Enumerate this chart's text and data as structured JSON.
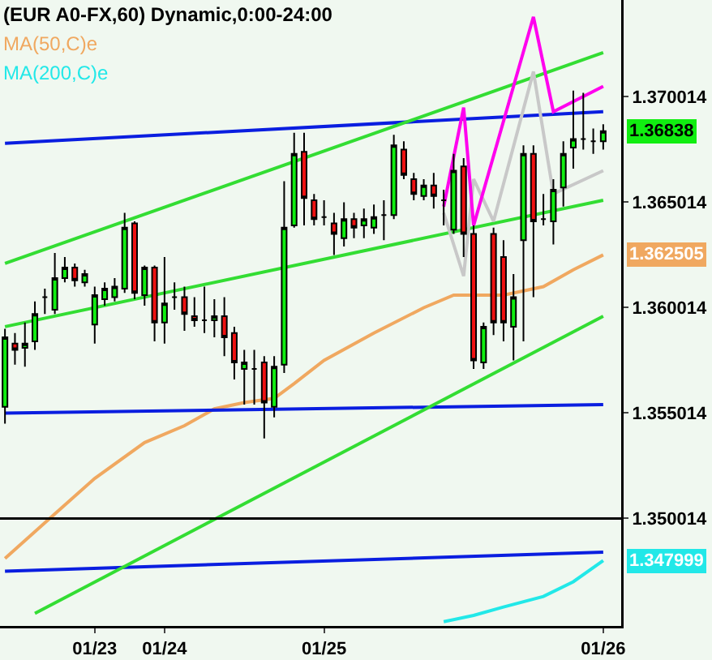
{
  "chart_data": {
    "type": "candlestick",
    "title": "(EUR A0-FX,60) Dynamic,0:00-24:00",
    "categories": [
      null,
      null,
      null,
      null,
      null,
      null,
      null,
      null,
      null,
      "01/23",
      null,
      null,
      null,
      null,
      null,
      null,
      "01/24",
      null,
      null,
      null,
      null,
      null,
      null,
      null,
      null,
      null,
      null,
      null,
      null,
      null,
      null,
      null,
      "01/25",
      null,
      null,
      null,
      null,
      null,
      null,
      null,
      null,
      null,
      null,
      null,
      null,
      null,
      null,
      null,
      null,
      null,
      null,
      null,
      null,
      null,
      null,
      null,
      null,
      null,
      null,
      null,
      "01/26"
    ],
    "ohlc": [
      [
        1.3553,
        1.359,
        1.3545,
        1.3586
      ],
      [
        1.3583,
        1.3588,
        1.3573,
        1.358
      ],
      [
        1.3581,
        1.3593,
        1.3572,
        1.3583
      ],
      [
        1.3584,
        1.3603,
        1.358,
        1.3597
      ],
      [
        1.3605,
        1.3609,
        1.3597,
        1.3605
      ],
      [
        1.3599,
        1.3626,
        1.3597,
        1.3614
      ],
      [
        1.3614,
        1.3624,
        1.3612,
        1.3619
      ],
      [
        1.3619,
        1.3621,
        1.361,
        1.3613
      ],
      [
        1.3612,
        1.3618,
        1.361,
        1.3616
      ],
      [
        1.3592,
        1.361,
        1.3583,
        1.3606
      ],
      [
        1.3604,
        1.3612,
        1.3601,
        1.3609
      ],
      [
        1.3605,
        1.3614,
        1.3603,
        1.361
      ],
      [
        1.3609,
        1.3645,
        1.3607,
        1.3638
      ],
      [
        1.364,
        1.3641,
        1.3604,
        1.3607
      ],
      [
        1.3606,
        1.362,
        1.3601,
        1.3619
      ],
      [
        1.3619,
        1.362,
        1.3584,
        1.3593
      ],
      [
        1.3593,
        1.3624,
        1.3583,
        1.3602
      ],
      [
        1.3605,
        1.3612,
        1.3599,
        1.3605
      ],
      [
        1.3605,
        1.361,
        1.3589,
        1.3597
      ],
      [
        1.3596,
        1.3605,
        1.3591,
        1.3594
      ],
      [
        1.3594,
        1.361,
        1.3588,
        1.3594
      ],
      [
        1.3594,
        1.3604,
        1.3586,
        1.3596
      ],
      [
        1.3596,
        1.3605,
        1.3577,
        1.3586
      ],
      [
        1.3588,
        1.3591,
        1.3566,
        1.3574
      ],
      [
        1.3571,
        1.358,
        1.3554,
        1.3574
      ],
      [
        1.3571,
        1.358,
        1.3554,
        1.3571
      ],
      [
        1.3574,
        1.3577,
        1.3538,
        1.3555
      ],
      [
        1.3553,
        1.3577,
        1.3548,
        1.3572
      ],
      [
        1.3573,
        1.366,
        1.3569,
        1.3638
      ],
      [
        1.3639,
        1.3683,
        1.3638,
        1.3673
      ],
      [
        1.3674,
        1.3683,
        1.3639,
        1.3652
      ],
      [
        1.3651,
        1.3654,
        1.3639,
        1.3642
      ],
      [
        1.3643,
        1.3651,
        1.3639,
        1.3643
      ],
      [
        1.364,
        1.3645,
        1.3625,
        1.3635
      ],
      [
        1.3633,
        1.365,
        1.3629,
        1.3642
      ],
      [
        1.3642,
        1.3645,
        1.3633,
        1.3638
      ],
      [
        1.3639,
        1.3647,
        1.3633,
        1.3642
      ],
      [
        1.3638,
        1.3649,
        1.3635,
        1.3643
      ],
      [
        1.3644,
        1.3651,
        1.3632,
        1.3644
      ],
      [
        1.3644,
        1.3682,
        1.3642,
        1.3677
      ],
      [
        1.3675,
        1.3679,
        1.3661,
        1.3663
      ],
      [
        1.3661,
        1.3664,
        1.3651,
        1.3654
      ],
      [
        1.3653,
        1.3661,
        1.3651,
        1.3658
      ],
      [
        1.3658,
        1.3664,
        1.3647,
        1.3653
      ],
      [
        1.3651,
        1.3656,
        1.3639,
        1.3651
      ],
      [
        1.3637,
        1.3673,
        1.3635,
        1.3665
      ],
      [
        1.3667,
        1.3671,
        1.3624,
        1.3635
      ],
      [
        1.3635,
        1.3639,
        1.3571,
        1.3575
      ],
      [
        1.3574,
        1.3593,
        1.3571,
        1.3591
      ],
      [
        1.3635,
        1.3638,
        1.3587,
        1.3593
      ],
      [
        1.3624,
        1.3632,
        1.3584,
        1.3593
      ],
      [
        1.3591,
        1.3616,
        1.3575,
        1.3605
      ],
      [
        1.3632,
        1.3677,
        1.3584,
        1.3673
      ],
      [
        1.3673,
        1.3677,
        1.3605,
        1.3641
      ],
      [
        1.3642,
        1.3654,
        1.3639,
        1.3642
      ],
      [
        1.3641,
        1.3661,
        1.363,
        1.3656
      ],
      [
        1.3657,
        1.3679,
        1.3648,
        1.3673
      ],
      [
        1.3676,
        1.3703,
        1.3666,
        1.368
      ],
      [
        1.368,
        1.3702,
        1.3675,
        1.368
      ],
      [
        1.3679,
        1.3685,
        1.3673,
        1.3679
      ],
      [
        1.3679,
        1.3687,
        1.3675,
        1.36838
      ]
    ],
    "colors": [
      "#11ee11",
      "#ee1111",
      "#11ee11",
      "#11ee11",
      "#000000",
      "#11ee11",
      "#11ee11",
      "#ee1111",
      "#11ee11",
      "#11ee11",
      "#11ee11",
      "#11ee11",
      "#11ee11",
      "#ee1111",
      "#11ee11",
      "#ee1111",
      "#11ee11",
      "#000000",
      "#ee1111",
      "#ee1111",
      "#000000",
      "#11ee11",
      "#ee1111",
      "#ee1111",
      "#11ee11",
      "#000000",
      "#ee1111",
      "#11ee11",
      "#11ee11",
      "#11ee11",
      "#ee1111",
      "#ee1111",
      "#000000",
      "#ee1111",
      "#11ee11",
      "#ee1111",
      "#11ee11",
      "#11ee11",
      "#000000",
      "#11ee11",
      "#ee1111",
      "#ee1111",
      "#11ee11",
      "#ee1111",
      "#000000",
      "#11ee11",
      "#ee1111",
      "#ee1111",
      "#11ee11",
      "#ee1111",
      "#ee1111",
      "#11ee11",
      "#11ee11",
      "#ee1111",
      "#000000",
      "#11ee11",
      "#11ee11",
      "#11ee11",
      "#000000",
      "#000000",
      "#11ee11"
    ],
    "value_labels": [
      null,
      null,
      null,
      null,
      null,
      null,
      null,
      null,
      null,
      null,
      null,
      null,
      null,
      null,
      null,
      null,
      null,
      null,
      null,
      null,
      null,
      null,
      null,
      null,
      null,
      null,
      null,
      null,
      null,
      null,
      null,
      null,
      null,
      null,
      null,
      null,
      null,
      null,
      null,
      null,
      null,
      null,
      null,
      null,
      null,
      null,
      null,
      null,
      null,
      null,
      null,
      null,
      null,
      null,
      null,
      null,
      null,
      null,
      null,
      null,
      "1.36838"
    ],
    "series": [
      {
        "type": "line",
        "name": "MA(50,C)e",
        "color": "#f0a860",
        "values": [
          1.3481,
          null,
          null,
          null,
          1.3498,
          null,
          null,
          null,
          null,
          1.3519,
          null,
          null,
          null,
          null,
          1.3536,
          null,
          null,
          null,
          1.3544,
          null,
          null,
          1.3552,
          null,
          null,
          1.3555,
          null,
          null,
          1.3557,
          null,
          1.3564,
          null,
          null,
          1.3575,
          null,
          null,
          null,
          null,
          1.3588,
          null,
          null,
          null,
          null,
          1.36,
          null,
          null,
          1.3606,
          null,
          null,
          null,
          null,
          1.3606,
          null,
          null,
          null,
          1.361,
          null,
          null,
          1.3618,
          null,
          null,
          1.362505
        ],
        "value_labels": [
          null,
          null,
          null,
          null,
          null,
          null,
          null,
          null,
          null,
          null,
          null,
          null,
          null,
          null,
          null,
          null,
          null,
          null,
          null,
          null,
          null,
          null,
          null,
          null,
          null,
          null,
          null,
          null,
          null,
          null,
          null,
          null,
          null,
          null,
          null,
          null,
          null,
          null,
          null,
          null,
          null,
          null,
          null,
          null,
          null,
          null,
          null,
          null,
          null,
          null,
          null,
          null,
          null,
          null,
          null,
          null,
          null,
          null,
          null,
          null,
          "1.362505"
        ]
      },
      {
        "type": "line",
        "name": "MA(200,C)e",
        "color": "#22e8e8",
        "values": [
          null,
          null,
          null,
          null,
          null,
          null,
          null,
          null,
          null,
          null,
          null,
          null,
          null,
          null,
          null,
          null,
          null,
          null,
          null,
          null,
          null,
          null,
          null,
          null,
          null,
          null,
          null,
          null,
          null,
          null,
          null,
          null,
          null,
          null,
          null,
          null,
          null,
          null,
          null,
          null,
          null,
          null,
          null,
          null,
          1.3451,
          null,
          null,
          1.3454,
          null,
          null,
          1.3458,
          null,
          null,
          null,
          1.3463,
          null,
          null,
          1.347,
          null,
          null,
          1.347999
        ],
        "value_labels": [
          null,
          null,
          null,
          null,
          null,
          null,
          null,
          null,
          null,
          null,
          null,
          null,
          null,
          null,
          null,
          null,
          null,
          null,
          null,
          null,
          null,
          null,
          null,
          null,
          null,
          null,
          null,
          null,
          null,
          null,
          null,
          null,
          null,
          null,
          null,
          null,
          null,
          null,
          null,
          null,
          null,
          null,
          null,
          null,
          null,
          null,
          null,
          null,
          null,
          null,
          null,
          null,
          null,
          null,
          null,
          null,
          null,
          null,
          null,
          null,
          "1.347999"
        ]
      },
      {
        "type": "line",
        "color": "#0a1ee0",
        "values": [
          1.3678,
          null,
          null,
          null,
          null,
          null,
          null,
          null,
          null,
          null,
          null,
          null,
          null,
          null,
          null,
          null,
          null,
          null,
          null,
          null,
          null,
          null,
          null,
          null,
          null,
          null,
          null,
          null,
          null,
          null,
          null,
          null,
          null,
          null,
          null,
          null,
          null,
          null,
          null,
          null,
          null,
          null,
          null,
          null,
          null,
          null,
          null,
          null,
          null,
          null,
          null,
          null,
          null,
          null,
          null,
          null,
          null,
          null,
          null,
          null,
          1.3693
        ]
      },
      {
        "type": "line",
        "color": "#0a1ee0",
        "values": [
          1.355,
          null,
          null,
          null,
          null,
          null,
          null,
          null,
          null,
          null,
          null,
          null,
          null,
          null,
          null,
          null,
          null,
          null,
          null,
          null,
          null,
          null,
          null,
          null,
          null,
          null,
          null,
          null,
          null,
          null,
          null,
          null,
          null,
          null,
          null,
          null,
          null,
          null,
          null,
          null,
          null,
          null,
          null,
          null,
          null,
          null,
          null,
          null,
          null,
          null,
          null,
          null,
          null,
          null,
          null,
          null,
          null,
          null,
          null,
          null,
          1.3554
        ]
      },
      {
        "type": "line",
        "color": "#0a1ee0",
        "values": [
          1.3475,
          null,
          null,
          null,
          null,
          null,
          null,
          null,
          null,
          null,
          null,
          null,
          null,
          null,
          null,
          null,
          null,
          null,
          null,
          null,
          null,
          null,
          null,
          null,
          null,
          null,
          null,
          null,
          null,
          null,
          null,
          null,
          null,
          null,
          null,
          null,
          null,
          null,
          null,
          null,
          null,
          null,
          null,
          null,
          null,
          null,
          null,
          null,
          null,
          null,
          null,
          null,
          null,
          null,
          null,
          null,
          null,
          null,
          null,
          null,
          1.3484
        ]
      },
      {
        "type": "line",
        "color": "#33dd33",
        "values": [
          1.3621,
          null,
          null,
          null,
          null,
          null,
          null,
          null,
          null,
          null,
          null,
          null,
          null,
          null,
          null,
          null,
          null,
          null,
          null,
          null,
          null,
          null,
          null,
          null,
          null,
          null,
          null,
          null,
          null,
          null,
          null,
          null,
          null,
          null,
          null,
          null,
          null,
          null,
          null,
          null,
          null,
          null,
          null,
          null,
          null,
          null,
          null,
          null,
          null,
          null,
          null,
          null,
          null,
          null,
          null,
          null,
          null,
          null,
          null,
          null,
          1.3721
        ]
      },
      {
        "type": "line",
        "color": "#33dd33",
        "values": [
          1.3591,
          null,
          null,
          null,
          null,
          null,
          null,
          null,
          null,
          null,
          null,
          null,
          null,
          null,
          null,
          null,
          null,
          null,
          null,
          null,
          null,
          null,
          null,
          null,
          null,
          null,
          null,
          null,
          null,
          null,
          null,
          null,
          null,
          null,
          null,
          null,
          null,
          null,
          null,
          null,
          null,
          null,
          null,
          null,
          null,
          null,
          null,
          null,
          null,
          null,
          null,
          null,
          null,
          null,
          null,
          null,
          null,
          null,
          null,
          null,
          1.3651
        ]
      },
      {
        "type": "line",
        "color": "#33dd33",
        "values": [
          null,
          null,
          null,
          1.3455,
          null,
          null,
          null,
          null,
          null,
          null,
          null,
          null,
          null,
          null,
          null,
          null,
          null,
          null,
          null,
          null,
          null,
          null,
          null,
          null,
          null,
          null,
          null,
          null,
          null,
          null,
          null,
          null,
          null,
          null,
          null,
          null,
          null,
          null,
          null,
          null,
          null,
          null,
          null,
          null,
          null,
          null,
          null,
          null,
          null,
          null,
          null,
          null,
          null,
          null,
          null,
          null,
          null,
          null,
          null,
          null,
          1.3596
        ]
      },
      {
        "type": "line",
        "color": "#c8c8c8",
        "values": [
          null,
          null,
          null,
          null,
          null,
          null,
          null,
          null,
          null,
          null,
          null,
          null,
          null,
          null,
          null,
          null,
          null,
          null,
          null,
          null,
          null,
          null,
          null,
          null,
          null,
          null,
          null,
          null,
          null,
          null,
          null,
          null,
          null,
          null,
          null,
          null,
          null,
          null,
          null,
          null,
          null,
          null,
          null,
          null,
          1.3645,
          null,
          1.3615,
          1.3661,
          null,
          1.3641,
          null,
          null,
          null,
          1.3712,
          null,
          1.3654,
          null,
          null,
          null,
          null,
          1.3665
        ]
      },
      {
        "type": "line",
        "color": "#ff00ee",
        "values": [
          null,
          null,
          null,
          null,
          null,
          null,
          null,
          null,
          null,
          null,
          null,
          null,
          null,
          null,
          null,
          null,
          null,
          null,
          null,
          null,
          null,
          null,
          null,
          null,
          null,
          null,
          null,
          null,
          null,
          null,
          null,
          null,
          null,
          null,
          null,
          null,
          null,
          null,
          null,
          null,
          null,
          null,
          null,
          null,
          1.3648,
          null,
          1.3695,
          1.3639,
          null,
          null,
          null,
          null,
          null,
          1.3738,
          null,
          1.3693,
          null,
          null,
          null,
          null,
          1.3705
        ]
      }
    ],
    "ref_lines": [
      {
        "axis": "y",
        "value": 1.35,
        "color": "#000000"
      }
    ],
    "ylim": [
      1.3449,
      1.3746
    ],
    "yticks": [
      1.350014,
      1.355014,
      1.360014,
      1.365014,
      1.370014
    ],
    "legend": "top left"
  }
}
